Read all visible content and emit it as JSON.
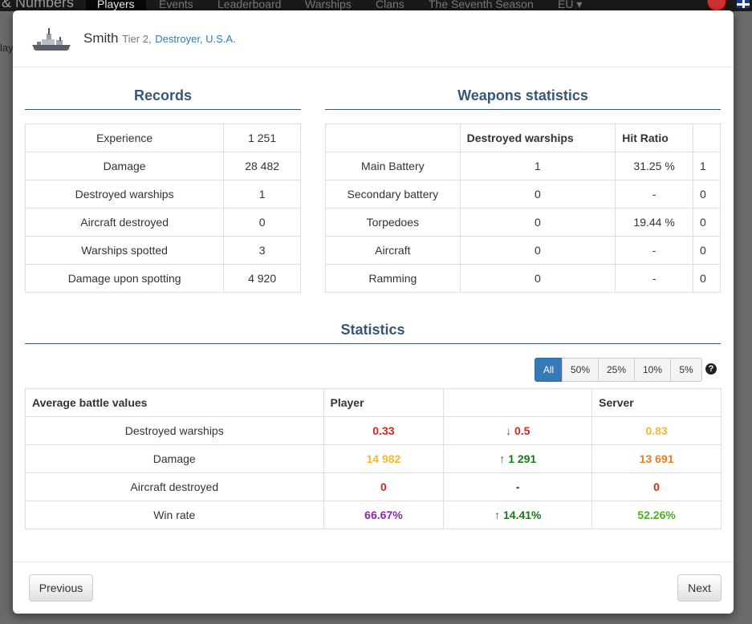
{
  "topnav": {
    "brand": "& Numbers",
    "items": [
      "Players",
      "Events",
      "Leaderboard",
      "Warships",
      "Clans",
      "The Seventh Season",
      "EU ▾"
    ]
  },
  "background": {
    "text": "lay"
  },
  "header": {
    "ship_name": "Smith",
    "tier": "Tier 2,",
    "ship_type": "Destroyer, U.S.A."
  },
  "records": {
    "title": "Records",
    "rows": [
      {
        "label": "Experience",
        "value": "1 251"
      },
      {
        "label": "Damage",
        "value": "28 482"
      },
      {
        "label": "Destroyed warships",
        "value": "1"
      },
      {
        "label": "Aircraft destroyed",
        "value": "0"
      },
      {
        "label": "Warships spotted",
        "value": "3"
      },
      {
        "label": "Damage upon spotting",
        "value": "4 920"
      }
    ]
  },
  "weapons": {
    "title": "Weapons statistics",
    "headers": [
      "",
      "Destroyed warships",
      "Hit Ratio",
      ""
    ],
    "rows": [
      {
        "label": "Main Battery",
        "destroyed": "1",
        "hit_ratio": "31.25 %",
        "extra": "1"
      },
      {
        "label": "Secondary battery",
        "destroyed": "0",
        "hit_ratio": "-",
        "extra": "0"
      },
      {
        "label": "Torpedoes",
        "destroyed": "0",
        "hit_ratio": "19.44 %",
        "extra": "0"
      },
      {
        "label": "Aircraft",
        "destroyed": "0",
        "hit_ratio": "-",
        "extra": "0"
      },
      {
        "label": "Ramming",
        "destroyed": "0",
        "hit_ratio": "-",
        "extra": "0"
      }
    ]
  },
  "statistics": {
    "title": "Statistics",
    "filters": [
      "All",
      "50%",
      "25%",
      "10%",
      "5%"
    ],
    "selected_filter": "All",
    "help_icon": "question-circle-icon",
    "headers": [
      "Average battle values",
      "Player",
      "",
      "Server"
    ],
    "rows": [
      {
        "label": "Destroyed warships",
        "player": "0.33",
        "player_color": "#d9261c",
        "diff_arrow": "down",
        "diff": "0.5",
        "diff_color": "#d9261c",
        "server": "0.83",
        "server_color": "#f5b82e"
      },
      {
        "label": "Damage",
        "player": "14 982",
        "player_color": "#f5b82e",
        "diff_arrow": "up",
        "diff": "1 291",
        "diff_color": "#1a7a1a",
        "server": "13 691",
        "server_color": "#e67e22"
      },
      {
        "label": "Aircraft destroyed",
        "player": "0",
        "player_color": "#d9261c",
        "diff_arrow": "none",
        "diff": "-",
        "diff_color": "#333333",
        "server": "0",
        "server_color": "#d9261c"
      },
      {
        "label": "Win rate",
        "player": "66.67%",
        "player_color": "#8e24aa",
        "diff_arrow": "up",
        "diff": "14.41%",
        "diff_color": "#1a7a1a",
        "server": "52.26%",
        "server_color": "#4caf1e"
      }
    ]
  },
  "footer": {
    "previous": "Previous",
    "next": "Next"
  }
}
